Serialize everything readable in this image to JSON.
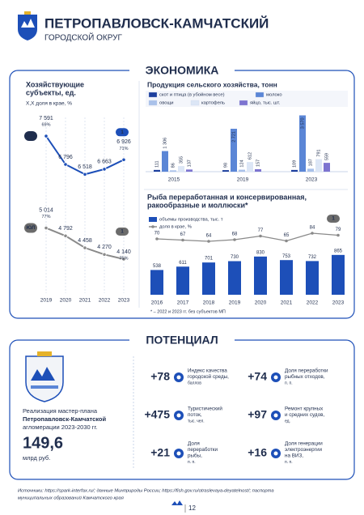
{
  "header": {
    "title": "ПЕТРОПАВЛОВСК-КАМЧАТСКИЙ",
    "subtitle": "ГОРОДСКОЙ ОКРУГ"
  },
  "economy_title": "ЭКОНОМИКА",
  "chart_data": [
    {
      "type": "line",
      "title": [
        "Хозяйствующие",
        "субъекты, ед."
      ],
      "subtitle": "Х,Х доля в крае, %",
      "categories": [
        "2019",
        "2020",
        "2021",
        "2022",
        "2023"
      ],
      "ylim": [
        3800,
        8000
      ],
      "series": [
        {
          "name": "ИП",
          "color": "#1d4fb8",
          "values": [
            7591,
            6796,
            6518,
            6663,
            6926
          ],
          "value_labels": [
            "7 591",
            "6 796",
            "6 518",
            "6 663",
            "6 926"
          ],
          "shares": [
            69,
            null,
            null,
            null,
            71
          ],
          "share_labels": [
            "69%",
            null,
            null,
            null,
            "71%"
          ],
          "rank": 1
        },
        {
          "name": "ЮЛ",
          "color": "#8a8a8a",
          "values": [
            5014,
            4792,
            4458,
            4270,
            4140
          ],
          "value_labels": [
            "5 014",
            "4 792",
            "4 458",
            "4 270",
            "4 140"
          ],
          "shares": [
            77,
            null,
            null,
            null,
            75
          ],
          "share_labels": [
            "77%",
            null,
            null,
            null,
            "75%"
          ],
          "rank": 1
        }
      ]
    },
    {
      "type": "bar",
      "title": "Продукция сельского хозяйства, тонн",
      "categories": [
        "2015",
        "2019",
        "2023"
      ],
      "ylim": [
        0,
        3800
      ],
      "series": [
        {
          "name": "скот и птица (в убойном весе)",
          "color": "#1d3f9e",
          "values": [
            111,
            98,
            109
          ]
        },
        {
          "name": "молоко",
          "color": "#5b86d6",
          "values": [
            1306,
            2721,
            3570
          ],
          "value_labels": [
            "1 306",
            "2 721",
            "3 570"
          ]
        },
        {
          "name": "овощи",
          "color": "#a9c1ea",
          "values": [
            86,
            124,
            187
          ]
        },
        {
          "name": "картофель",
          "color": "#dce6f6",
          "values": [
            355,
            612,
            791
          ]
        },
        {
          "name": "яйцо, тыс. шт.",
          "color": "#7d74d0",
          "values": [
            137,
            157,
            559
          ]
        }
      ]
    },
    {
      "type": "bar",
      "title": [
        "Рыба переработанная и консервированная,",
        "ракообразные и моллюски*"
      ],
      "categories": [
        "2016",
        "2017",
        "2018",
        "2019",
        "2020",
        "2021",
        "2022",
        "2023"
      ],
      "ylim": [
        0,
        950
      ],
      "y2lim": [
        0,
        100
      ],
      "series": [
        {
          "name": "объемы производства, тыс. т",
          "color": "#1d4fb8",
          "values": [
            538,
            611,
            701,
            730,
            830,
            753,
            732,
            865
          ]
        },
        {
          "name": "доля в крае, %",
          "color": "#8a8a8a",
          "axis": "y2",
          "values": [
            70,
            67,
            64,
            68,
            77,
            65,
            84,
            79
          ]
        }
      ],
      "rank": 1,
      "footnote": "* – 2022 и 2023 гг. без субъектов МП"
    }
  ],
  "potential": {
    "title": "ПОТЕНЦИАЛ",
    "project": {
      "text": [
        "Реализация мастер-плана",
        "Петропавловск-Камчатской",
        "агломерации 2023-2030 гг."
      ],
      "amount": "149,6",
      "unit": "млрд руб."
    },
    "items": [
      {
        "value": "+78",
        "label": [
          "Индекс качества",
          "городской среды,"
        ],
        "unit": "баллов"
      },
      {
        "value": "+74",
        "label": [
          "Доля переработки",
          "рыбных отходов,"
        ],
        "unit": "п. п."
      },
      {
        "value": "+475",
        "label": [
          "Туристический",
          "поток,"
        ],
        "unit": "тыс. чел."
      },
      {
        "value": "+97",
        "label": [
          "Ремонт крупных",
          "и средних судов,"
        ],
        "unit": "ед."
      },
      {
        "value": "+21",
        "label": [
          "Доля",
          "переработки",
          "рыбы,"
        ],
        "unit": "п. п."
      },
      {
        "value": "+16",
        "label": [
          "Доля генерации",
          "электроэнергии",
          "на ВИЗ,"
        ],
        "unit": "п. п."
      }
    ]
  },
  "footer": {
    "sources": [
      "Источники: https://spark-interfax.ru/; данные Минприроды России; https://fish.gov.ru/otraslevaya-deyatelnost/; паспорта",
      "муниципальных образований Камчатского  края"
    ],
    "page": "12"
  }
}
